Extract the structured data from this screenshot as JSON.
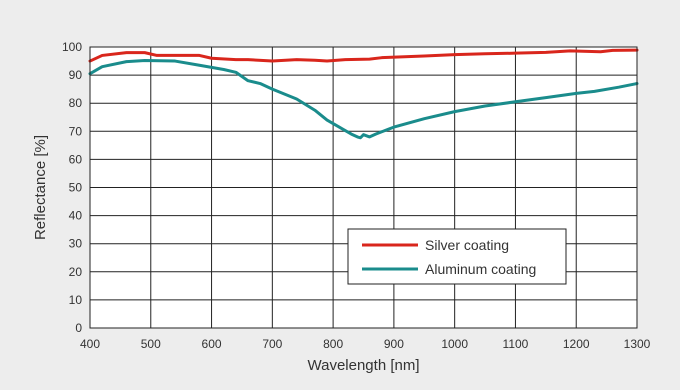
{
  "chart_data": {
    "type": "line",
    "xlabel": "Wavelength [nm]",
    "ylabel": "Reflectance [%]",
    "xlim": [
      400,
      1300
    ],
    "ylim": [
      0,
      100
    ],
    "xticks": [
      400,
      500,
      600,
      700,
      800,
      900,
      1000,
      1100,
      1200,
      1300
    ],
    "yticks": [
      0,
      10,
      20,
      30,
      40,
      50,
      60,
      70,
      80,
      90,
      100
    ],
    "grid": true,
    "legend_position": "lower-right",
    "series": [
      {
        "name": "Silver coating",
        "color": "#d9261c",
        "points": [
          [
            400,
            95
          ],
          [
            420,
            97
          ],
          [
            460,
            98
          ],
          [
            490,
            98
          ],
          [
            510,
            97
          ],
          [
            550,
            97
          ],
          [
            580,
            97
          ],
          [
            600,
            96
          ],
          [
            640,
            95.5
          ],
          [
            660,
            95.5
          ],
          [
            700,
            95
          ],
          [
            740,
            95.5
          ],
          [
            770,
            95.3
          ],
          [
            790,
            95
          ],
          [
            820,
            95.5
          ],
          [
            860,
            95.7
          ],
          [
            880,
            96.2
          ],
          [
            950,
            96.8
          ],
          [
            1000,
            97.3
          ],
          [
            1050,
            97.6
          ],
          [
            1100,
            97.8
          ],
          [
            1150,
            98.1
          ],
          [
            1190,
            98.6
          ],
          [
            1240,
            98.3
          ],
          [
            1260,
            98.8
          ],
          [
            1300,
            98.9
          ]
        ]
      },
      {
        "name": "Aluminum coating",
        "color": "#1a8c8c",
        "points": [
          [
            400,
            90.5
          ],
          [
            420,
            93
          ],
          [
            460,
            94.8
          ],
          [
            490,
            95.2
          ],
          [
            540,
            95
          ],
          [
            580,
            93.5
          ],
          [
            620,
            92
          ],
          [
            640,
            91
          ],
          [
            660,
            88
          ],
          [
            680,
            87
          ],
          [
            700,
            85
          ],
          [
            740,
            81.5
          ],
          [
            770,
            77.5
          ],
          [
            790,
            74
          ],
          [
            810,
            71.5
          ],
          [
            830,
            69
          ],
          [
            840,
            68
          ],
          [
            845,
            67.7
          ],
          [
            850,
            68.8
          ],
          [
            860,
            68
          ],
          [
            870,
            69
          ],
          [
            900,
            71.5
          ],
          [
            950,
            74.5
          ],
          [
            1000,
            77
          ],
          [
            1050,
            79
          ],
          [
            1100,
            80.5
          ],
          [
            1150,
            82
          ],
          [
            1200,
            83.5
          ],
          [
            1230,
            84.2
          ],
          [
            1270,
            85.7
          ],
          [
            1300,
            87
          ]
        ]
      }
    ]
  }
}
